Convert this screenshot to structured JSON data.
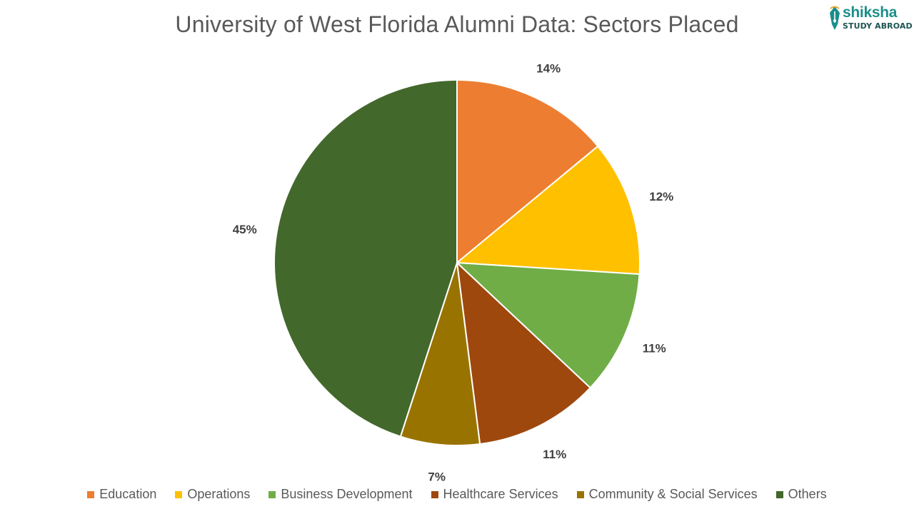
{
  "title": "University of West Florida Alumni Data: Sectors Placed",
  "logo": {
    "name": "shiksha",
    "tagline": "STUDY ABROAD",
    "icon": "pen-nib-icon",
    "color": "#1a8f8a"
  },
  "chart_data": {
    "type": "pie",
    "title": "University of West Florida Alumni Data: Sectors Placed",
    "start_angle_deg": 0,
    "direction": "clockwise",
    "legend_position": "bottom",
    "slices": [
      {
        "label": "Education",
        "value": 14,
        "display": "14%",
        "color": "#ED7D31"
      },
      {
        "label": "Operations",
        "value": 12,
        "display": "12%",
        "color": "#FFC000"
      },
      {
        "label": "Business Development",
        "value": 11,
        "display": "11%",
        "color": "#70AD47"
      },
      {
        "label": "Healthcare Services",
        "value": 11,
        "display": "11%",
        "color": "#9E480E"
      },
      {
        "label": "Community & Social Services",
        "value": 7,
        "display": "7%",
        "color": "#997300"
      },
      {
        "label": "Others",
        "value": 45,
        "display": "45%",
        "color": "#43682B"
      }
    ]
  }
}
